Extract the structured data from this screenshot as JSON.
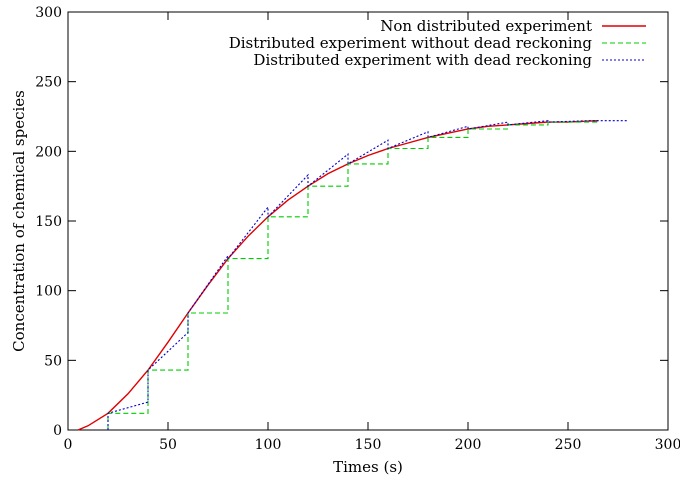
{
  "chart_data": {
    "type": "line",
    "title": "",
    "xlabel": "Times (s)",
    "ylabel": "Concentration of chemical species",
    "xlim": [
      0,
      300
    ],
    "ylim": [
      0,
      300
    ],
    "xticks": [
      0,
      50,
      100,
      150,
      200,
      250,
      300
    ],
    "yticks": [
      0,
      50,
      100,
      150,
      200,
      250,
      300
    ],
    "grid": false,
    "legend_position": "top-right",
    "series": [
      {
        "name": "Non distributed experiment",
        "color": "#e00000",
        "dash": "solid",
        "x": [
          5,
          10,
          20,
          30,
          40,
          50,
          60,
          70,
          80,
          90,
          100,
          110,
          120,
          130,
          140,
          150,
          160,
          170,
          180,
          190,
          200,
          210,
          220,
          230,
          240,
          250,
          265
        ],
        "y": [
          0,
          3,
          12,
          26,
          43,
          63,
          84,
          104,
          123,
          139,
          153,
          165,
          175,
          184,
          191,
          197,
          202,
          206,
          210,
          213,
          216,
          218,
          219,
          220,
          221,
          221,
          222
        ]
      },
      {
        "name": "Distributed experiment without dead reckoning",
        "color": "#00cc00",
        "dash": "dashed",
        "x": [
          20,
          20,
          40,
          40,
          60,
          60,
          80,
          80,
          100,
          100,
          120,
          120,
          140,
          140,
          160,
          160,
          180,
          180,
          200,
          200,
          220,
          220,
          240,
          240,
          265
        ],
        "y": [
          0,
          12,
          12,
          43,
          43,
          84,
          84,
          123,
          123,
          153,
          153,
          175,
          175,
          191,
          191,
          202,
          202,
          210,
          210,
          216,
          216,
          219,
          219,
          221,
          221
        ]
      },
      {
        "name": "Distributed experiment with dead reckoning",
        "color": "#0000cc",
        "dash": "dotted",
        "x": [
          20,
          20,
          40,
          40,
          60,
          60,
          80,
          80,
          100,
          100,
          120,
          120,
          140,
          140,
          160,
          160,
          180,
          180,
          200,
          200,
          220,
          220,
          240,
          240,
          260,
          280
        ],
        "y": [
          0,
          12,
          20,
          43,
          70,
          84,
          125,
          123,
          160,
          153,
          183,
          175,
          198,
          191,
          208,
          202,
          214,
          210,
          218,
          216,
          221,
          219,
          222,
          221,
          222,
          222
        ]
      }
    ]
  }
}
